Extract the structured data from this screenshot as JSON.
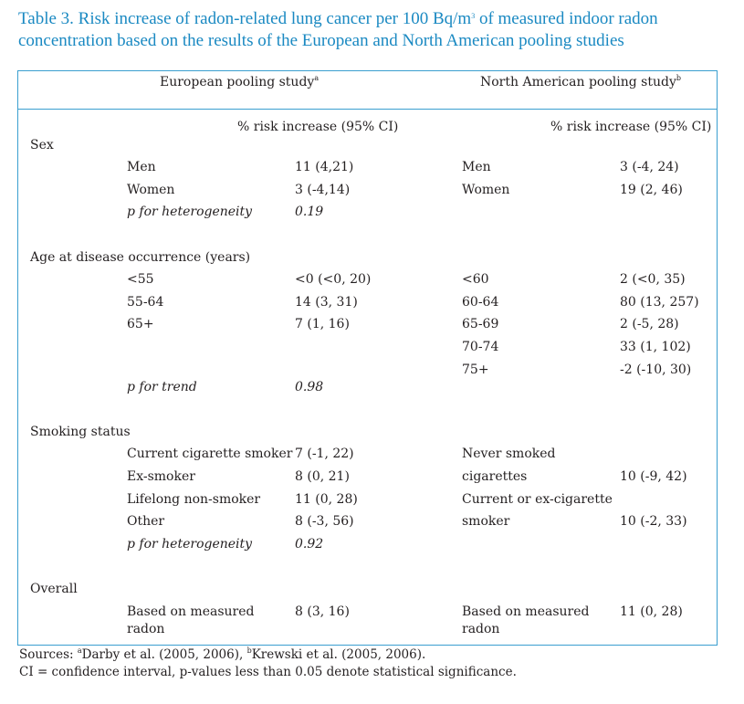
{
  "title": {
    "line1": "Table 3.  Risk increase of radon-related lung cancer per 100 Bq/m",
    "line1_sup": "3",
    "line1_end": " of measured indoor radon",
    "line2": "concentration based on the results of the European and North American pooling studies"
  },
  "table": {
    "col_headers": {
      "european": "European pooling study",
      "european_sup": "a",
      "north_american": "North American pooling study",
      "north_american_sup": "b"
    },
    "subheaders": {
      "european": "% risk increase (95% CI)",
      "north_american": "% risk increase (95% CI)"
    },
    "sections": {
      "sex": {
        "heading": "Sex",
        "eu": [
          {
            "label": "Men",
            "value": "11 (4,21)"
          },
          {
            "label": "Women",
            "value": "3 (-4,14)"
          },
          {
            "label": "p for heterogeneity",
            "value": "0.19"
          }
        ],
        "na": [
          {
            "label": "Men",
            "value": "3 (-4, 24)"
          },
          {
            "label": "Women",
            "value": "19 (2, 46)"
          }
        ]
      },
      "age": {
        "heading": "Age at disease occurrence (years)",
        "eu": [
          {
            "label": "<55",
            "value": "<0 (<0, 20)"
          },
          {
            "label": "55-64",
            "value": "14 (3, 31)"
          },
          {
            "label": "65+",
            "value": "7 (1, 16)"
          },
          {
            "label": "p for trend",
            "value": "0.98"
          }
        ],
        "na": [
          {
            "label": "<60",
            "value": "2 (<0, 35)"
          },
          {
            "label": "60-64",
            "value": "80 (13, 257)"
          },
          {
            "label": "65-69",
            "value": "2 (-5, 28)"
          },
          {
            "label": "70-74",
            "value": "33 (1, 102)"
          },
          {
            "label": "75+",
            "value": "-2 (-10, 30)"
          }
        ]
      },
      "smoking": {
        "heading": "Smoking status",
        "eu": [
          {
            "label": "Current cigarette smoker",
            "value": "7 (-1, 22)"
          },
          {
            "label": "Ex-smoker",
            "value": "8 (0, 21)"
          },
          {
            "label": "Lifelong non-smoker",
            "value": "11 (0, 28)"
          },
          {
            "label": "Other",
            "value": "8 (-3, 56)"
          },
          {
            "label": "p for heterogeneity",
            "value": "0.92"
          }
        ],
        "na": [
          {
            "label_line1": "Never smoked",
            "label_line2": "cigarettes",
            "value": "10 (-9, 42)"
          },
          {
            "label_line1": "Current or ex-cigarette",
            "label_line2": "smoker",
            "value": "10 (-2, 33)"
          }
        ]
      },
      "overall": {
        "heading": "Overall",
        "eu": {
          "label_line1": "Based on measured",
          "label_line2": "radon",
          "value": "8 (3, 16)"
        },
        "na": {
          "label_line1": "Based on measured",
          "label_line2": "radon",
          "value": "11 (0, 28)"
        }
      }
    }
  },
  "footer": {
    "sources_prefix": "Sources: ",
    "sup_a": "a",
    "source_a": "Darby et al. (2005, 2006), ",
    "sup_b": "b",
    "source_b": "Krewski et al. (2005, 2006).",
    "note": "CI = confidence interval, p-values less than 0.05 denote statistical significance."
  }
}
